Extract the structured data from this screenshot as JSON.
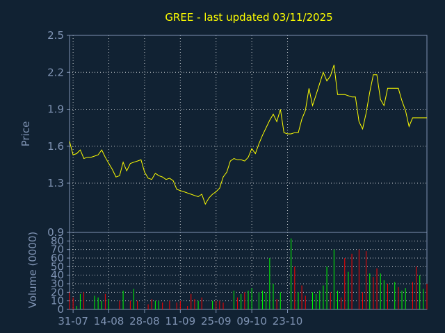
{
  "chart_data": [
    {
      "type": "line",
      "title": "GREE - last updated 03/11/2025",
      "ylabel": "Price",
      "ylim": [
        0.9,
        2.5
      ],
      "yticks": [
        "0.9",
        "1.3",
        "1.6",
        "1.9",
        "2.2",
        "2.5"
      ],
      "ytick_values": [
        0.9,
        1.3,
        1.6,
        1.9,
        2.2,
        2.5
      ],
      "grid": true,
      "line_color": "#ffff00",
      "series": [
        {
          "values": [
            1.64,
            1.53,
            1.54,
            1.57,
            1.5,
            1.51,
            1.51,
            1.52,
            1.53,
            1.57,
            1.51,
            1.46,
            1.41,
            1.35,
            1.36,
            1.47,
            1.4,
            1.46,
            1.47,
            1.48,
            1.49,
            1.39,
            1.34,
            1.33,
            1.38,
            1.36,
            1.35,
            1.33,
            1.34,
            1.32,
            1.25,
            1.24,
            1.23,
            1.22,
            1.21,
            1.2,
            1.19,
            1.21,
            1.13,
            1.18,
            1.21,
            1.23,
            1.26,
            1.35,
            1.39,
            1.48,
            1.5,
            1.49,
            1.49,
            1.48,
            1.51,
            1.58,
            1.54,
            1.62,
            1.69,
            1.75,
            1.81,
            1.86,
            1.8,
            1.9,
            1.71,
            1.7,
            1.7,
            1.71,
            1.71,
            1.82,
            1.89,
            2.07,
            1.93,
            2.02,
            2.11,
            2.2,
            2.13,
            2.17,
            2.26,
            2.02,
            2.02,
            2.02,
            2.01,
            2.0,
            2.0,
            1.8,
            1.74,
            1.87,
            2.04,
            2.18,
            2.18,
            1.98,
            1.93,
            2.07,
            2.07,
            2.07,
            2.07,
            1.97,
            1.89,
            1.76,
            1.83,
            1.83,
            1.83,
            1.83,
            1.83
          ]
        }
      ]
    },
    {
      "type": "bar",
      "ylabel": "Volume (0000)",
      "ylim": [
        0,
        90
      ],
      "yticks": [
        "0",
        "10",
        "20",
        "30",
        "40",
        "50",
        "60",
        "70",
        "80"
      ],
      "ytick_values": [
        0,
        10,
        20,
        30,
        40,
        50,
        60,
        70,
        80
      ],
      "grid": true,
      "xticks": [
        "31-07",
        "14-08",
        "28-08",
        "11-09",
        "25-09",
        "09-10",
        "23-10"
      ],
      "xtick_index": [
        1,
        11,
        21,
        31,
        41,
        51,
        61
      ],
      "colors": {
        "up": "#00ff00",
        "down": "#ff0000"
      },
      "series": [
        {
          "values": [
            20,
            14,
            4,
            18,
            20,
            0,
            0,
            16,
            14,
            10,
            18,
            12,
            0,
            0,
            10,
            22,
            0,
            10,
            24,
            10,
            0,
            0,
            6,
            12,
            10,
            10,
            8,
            0,
            10,
            0,
            8,
            10,
            0,
            4,
            18,
            12,
            10,
            14,
            0,
            0,
            10,
            10,
            10,
            8,
            0,
            0,
            22,
            14,
            18,
            20,
            22,
            25,
            0,
            20,
            22,
            20,
            60,
            30,
            12,
            20,
            0,
            0,
            83,
            50,
            20,
            28,
            16,
            0,
            20,
            18,
            22,
            28,
            50,
            20,
            70,
            22,
            14,
            60,
            44,
            65,
            0,
            70,
            20,
            68,
            42,
            38,
            48,
            42,
            34,
            30,
            0,
            32,
            26,
            22,
            25,
            0,
            32,
            50,
            40,
            24,
            30
          ]
        }
      ],
      "up_flags": [
        false,
        false,
        true,
        true,
        false,
        true,
        true,
        true,
        true,
        true,
        false,
        true,
        true,
        true,
        false,
        true,
        true,
        false,
        true,
        false,
        true,
        true,
        false,
        false,
        true,
        true,
        false,
        true,
        false,
        true,
        false,
        false,
        true,
        false,
        false,
        false,
        true,
        false,
        false,
        true,
        true,
        false,
        false,
        false,
        true,
        true,
        true,
        false,
        true,
        false,
        true,
        true,
        false,
        true,
        true,
        true,
        true,
        true,
        false,
        true,
        false,
        true,
        true,
        false,
        true,
        false,
        false,
        true,
        true,
        true,
        true,
        true,
        true,
        false,
        true,
        true,
        false,
        false,
        true,
        false,
        true,
        false,
        false,
        false,
        true,
        false,
        false,
        true,
        true,
        false,
        false,
        true,
        false,
        true,
        true,
        true,
        false,
        false,
        true,
        true,
        false
      ]
    }
  ]
}
